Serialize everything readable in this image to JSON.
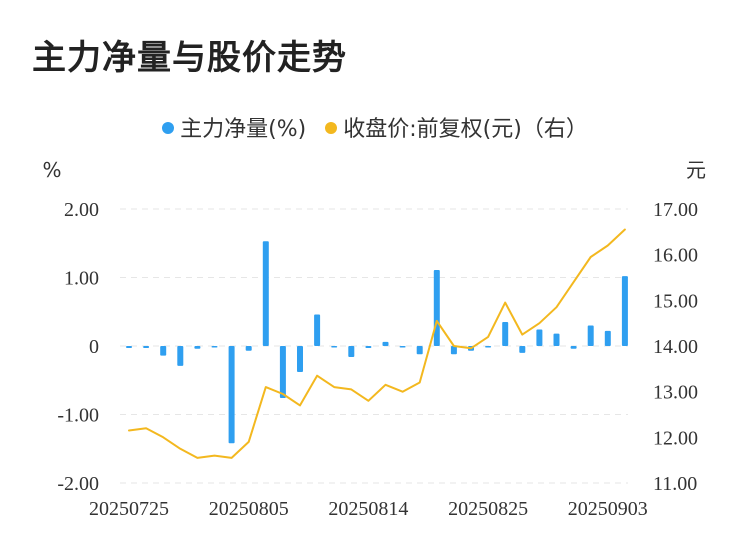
{
  "title": "主力净量与股价走势",
  "legend": {
    "bar_label": "主力净量(%)",
    "line_label": "收盘价:前复权(元)（右）"
  },
  "colors": {
    "bar": "#2f9ff0",
    "line": "#f3b81f",
    "grid": "#e6e6e6",
    "text": "#333333"
  },
  "chart_data": {
    "type": "bar+line",
    "y_left_unit": "%",
    "y_right_unit": "元",
    "y_left_ticks": [
      "2.00",
      "1.00",
      "0",
      "-1.00",
      "-2.00"
    ],
    "y_right_ticks": [
      "17.00",
      "16.00",
      "15.00",
      "14.00",
      "13.00",
      "12.00",
      "11.00"
    ],
    "y_left_range": [
      -2,
      2
    ],
    "y_right_range": [
      11,
      17
    ],
    "x_tick_labels": [
      "20250725",
      "20250805",
      "20250814",
      "20250825",
      "20250903"
    ],
    "x_tick_index": [
      0,
      7,
      14,
      21,
      28
    ],
    "series": [
      {
        "name": "主力净量(%)",
        "axis": "left",
        "kind": "bar",
        "values": [
          -0.03,
          -0.03,
          -0.14,
          -0.29,
          -0.04,
          -0.01,
          -1.42,
          -0.07,
          1.53,
          -0.76,
          -0.38,
          0.46,
          -0.01,
          -0.16,
          -0.03,
          0.06,
          -0.01,
          -0.12,
          1.11,
          -0.12,
          -0.07,
          -0.01,
          0.35,
          -0.1,
          0.24,
          0.18,
          -0.04,
          0.3,
          0.22,
          1.02
        ]
      },
      {
        "name": "收盘价:前复权(元)（右）",
        "axis": "right",
        "kind": "line",
        "values": [
          12.15,
          12.2,
          12.0,
          11.75,
          11.55,
          11.6,
          11.55,
          11.9,
          13.1,
          12.95,
          12.7,
          13.35,
          13.1,
          13.05,
          12.8,
          13.15,
          13.0,
          13.2,
          14.55,
          14.0,
          13.95,
          14.2,
          14.95,
          14.25,
          14.5,
          14.85,
          15.4,
          15.95,
          16.2,
          16.55
        ]
      }
    ]
  }
}
